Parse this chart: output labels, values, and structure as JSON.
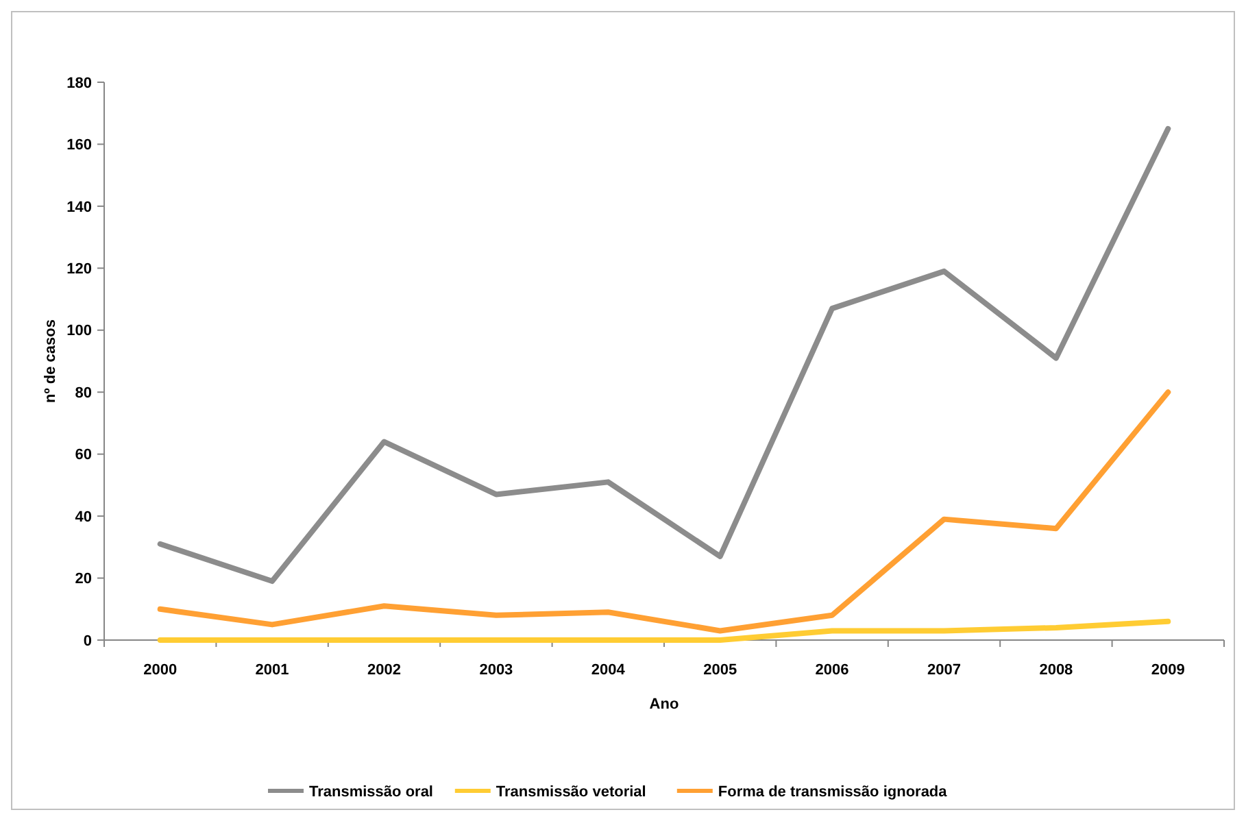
{
  "chart_data": {
    "type": "line",
    "xlabel": "Ano",
    "ylabel": "nº de casos",
    "categories": [
      "2000",
      "2001",
      "2002",
      "2003",
      "2004",
      "2005",
      "2006",
      "2007",
      "2008",
      "2009"
    ],
    "series": [
      {
        "name": "Transmissão oral",
        "color": "#8c8c8c",
        "values": [
          31,
          19,
          64,
          47,
          51,
          27,
          107,
          119,
          91,
          165
        ]
      },
      {
        "name": "Transmissão vetorial",
        "color": "#ffcc33",
        "values": [
          0,
          0,
          0,
          0,
          0,
          0,
          3,
          3,
          4,
          6
        ]
      },
      {
        "name": "Forma de transmissão ignorada",
        "color": "#ffa033",
        "values": [
          10,
          5,
          11,
          8,
          9,
          3,
          8,
          39,
          36,
          80
        ]
      }
    ],
    "ylim": [
      0,
      180
    ],
    "yticks": [
      0,
      20,
      40,
      60,
      80,
      100,
      120,
      140,
      160,
      180
    ],
    "grid": false,
    "legend": "bottom",
    "line_style": "solid"
  }
}
